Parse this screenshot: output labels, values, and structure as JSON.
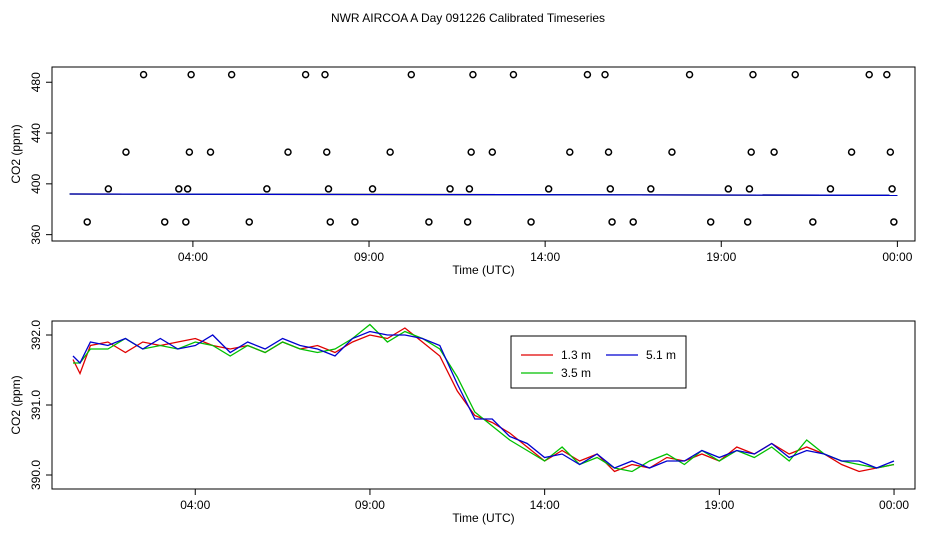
{
  "title": "NWR AIRCOA A  Day 091226  Calibrated Timeseries",
  "colors": {
    "red": "#e00000",
    "green": "#00c000",
    "blue": "#0000d0"
  },
  "chart_data": [
    {
      "type": "scatter",
      "xlabel": "Time (UTC)",
      "ylabel": "CO2 (ppm)",
      "xticks": [
        {
          "label": "04:00",
          "hour": 4
        },
        {
          "label": "09:00",
          "hour": 9
        },
        {
          "label": "14:00",
          "hour": 14
        },
        {
          "label": "19:00",
          "hour": 19
        },
        {
          "label": "00:00",
          "hour": 24
        }
      ],
      "yticks": [
        360,
        400,
        440,
        480
      ],
      "xlim": [
        0,
        24.5
      ],
      "ylim": [
        355,
        492
      ],
      "points": [
        {
          "x": 1.0,
          "y": 370
        },
        {
          "x": 1.6,
          "y": 396
        },
        {
          "x": 2.1,
          "y": 425
        },
        {
          "x": 2.6,
          "y": 486
        },
        {
          "x": 3.2,
          "y": 370
        },
        {
          "x": 3.6,
          "y": 396
        },
        {
          "x": 3.8,
          "y": 370
        },
        {
          "x": 3.85,
          "y": 396
        },
        {
          "x": 3.9,
          "y": 425
        },
        {
          "x": 3.95,
          "y": 486
        },
        {
          "x": 4.5,
          "y": 425
        },
        {
          "x": 5.1,
          "y": 486
        },
        {
          "x": 5.6,
          "y": 370
        },
        {
          "x": 6.1,
          "y": 396
        },
        {
          "x": 6.7,
          "y": 425
        },
        {
          "x": 7.2,
          "y": 486
        },
        {
          "x": 7.75,
          "y": 486
        },
        {
          "x": 7.8,
          "y": 425
        },
        {
          "x": 7.85,
          "y": 396
        },
        {
          "x": 7.9,
          "y": 370
        },
        {
          "x": 8.6,
          "y": 370
        },
        {
          "x": 9.1,
          "y": 396
        },
        {
          "x": 9.6,
          "y": 425
        },
        {
          "x": 10.2,
          "y": 486
        },
        {
          "x": 10.7,
          "y": 370
        },
        {
          "x": 11.3,
          "y": 396
        },
        {
          "x": 11.8,
          "y": 370
        },
        {
          "x": 11.85,
          "y": 396
        },
        {
          "x": 11.9,
          "y": 425
        },
        {
          "x": 11.95,
          "y": 486
        },
        {
          "x": 12.5,
          "y": 425
        },
        {
          "x": 13.1,
          "y": 486
        },
        {
          "x": 13.6,
          "y": 370
        },
        {
          "x": 14.1,
          "y": 396
        },
        {
          "x": 14.7,
          "y": 425
        },
        {
          "x": 15.2,
          "y": 486
        },
        {
          "x": 15.7,
          "y": 486
        },
        {
          "x": 15.8,
          "y": 425
        },
        {
          "x": 15.85,
          "y": 396
        },
        {
          "x": 15.9,
          "y": 370
        },
        {
          "x": 16.5,
          "y": 370
        },
        {
          "x": 17.0,
          "y": 396
        },
        {
          "x": 17.6,
          "y": 425
        },
        {
          "x": 18.1,
          "y": 486
        },
        {
          "x": 18.7,
          "y": 370
        },
        {
          "x": 19.2,
          "y": 396
        },
        {
          "x": 19.75,
          "y": 370
        },
        {
          "x": 19.8,
          "y": 396
        },
        {
          "x": 19.85,
          "y": 425
        },
        {
          "x": 19.9,
          "y": 486
        },
        {
          "x": 20.5,
          "y": 425
        },
        {
          "x": 21.1,
          "y": 486
        },
        {
          "x": 21.6,
          "y": 370
        },
        {
          "x": 22.1,
          "y": 396
        },
        {
          "x": 22.7,
          "y": 425
        },
        {
          "x": 23.2,
          "y": 486
        },
        {
          "x": 23.7,
          "y": 486
        },
        {
          "x": 23.8,
          "y": 425
        },
        {
          "x": 23.85,
          "y": 396
        },
        {
          "x": 23.9,
          "y": 370
        }
      ],
      "series": [
        {
          "color": "#e00000",
          "x": [
            0.5,
            24
          ],
          "y": [
            392.0,
            391.0
          ]
        },
        {
          "color": "#00c000",
          "x": [
            0.5,
            24
          ],
          "y": [
            392.0,
            391.0
          ]
        },
        {
          "color": "#0000d0",
          "x": [
            0.5,
            24
          ],
          "y": [
            392.0,
            391.0
          ]
        }
      ]
    },
    {
      "type": "line",
      "xlabel": "Time (UTC)",
      "ylabel": "CO2 (ppm)",
      "xticks": [
        {
          "label": "04:00",
          "hour": 4
        },
        {
          "label": "09:00",
          "hour": 9
        },
        {
          "label": "14:00",
          "hour": 14
        },
        {
          "label": "19:00",
          "hour": 19
        },
        {
          "label": "00:00",
          "hour": 24
        }
      ],
      "yticks": [
        {
          "label": "390.0",
          "value": 390.0
        },
        {
          "label": "391.0",
          "value": 391.0
        },
        {
          "label": "392.0",
          "value": 392.0
        }
      ],
      "xlim": [
        -0.1,
        24.6
      ],
      "ylim": [
        389.8,
        392.2
      ],
      "legend": "top-right",
      "series": [
        {
          "name": "1.3 m",
          "color": "#e00000",
          "x": [
            0.5,
            0.7,
            1.0,
            1.5,
            2.0,
            2.5,
            3.0,
            3.5,
            4.0,
            4.5,
            5.0,
            5.5,
            6.0,
            6.5,
            7.0,
            7.5,
            8.0,
            8.5,
            9.0,
            9.5,
            10.0,
            10.5,
            11.0,
            11.5,
            12.0,
            12.5,
            13.0,
            13.5,
            14.0,
            14.5,
            15.0,
            15.5,
            16.0,
            16.5,
            17.0,
            17.5,
            18.0,
            18.5,
            19.0,
            19.5,
            20.0,
            20.5,
            21.0,
            21.5,
            22.0,
            22.5,
            23.0,
            23.5,
            24.0
          ],
          "y": [
            391.65,
            391.45,
            391.85,
            391.9,
            391.75,
            391.9,
            391.85,
            391.9,
            391.95,
            391.85,
            391.8,
            391.85,
            391.75,
            391.9,
            391.8,
            391.85,
            391.75,
            391.9,
            392.0,
            391.95,
            392.1,
            391.9,
            391.7,
            391.2,
            390.85,
            390.75,
            390.6,
            390.4,
            390.2,
            390.35,
            390.2,
            390.3,
            390.05,
            390.15,
            390.1,
            390.25,
            390.2,
            390.3,
            390.2,
            390.4,
            390.3,
            390.45,
            390.3,
            390.4,
            390.3,
            390.15,
            390.05,
            390.1,
            390.15
          ]
        },
        {
          "name": "3.5 m",
          "color": "#00c000",
          "x": [
            0.5,
            0.7,
            1.0,
            1.5,
            2.0,
            2.5,
            3.0,
            3.5,
            4.0,
            4.5,
            5.0,
            5.5,
            6.0,
            6.5,
            7.0,
            7.5,
            8.0,
            8.5,
            9.0,
            9.5,
            10.0,
            10.5,
            11.0,
            11.5,
            12.0,
            12.5,
            13.0,
            13.5,
            14.0,
            14.5,
            15.0,
            15.5,
            16.0,
            16.5,
            17.0,
            17.5,
            18.0,
            18.5,
            19.0,
            19.5,
            20.0,
            20.5,
            21.0,
            21.5,
            22.0,
            22.5,
            23.0,
            23.5,
            24.0
          ],
          "y": [
            391.6,
            391.6,
            391.8,
            391.8,
            391.95,
            391.8,
            391.85,
            391.8,
            391.9,
            391.85,
            391.7,
            391.85,
            391.75,
            391.9,
            391.8,
            391.75,
            391.8,
            391.95,
            392.15,
            391.9,
            392.05,
            391.95,
            391.8,
            391.4,
            390.9,
            390.7,
            390.5,
            390.35,
            390.2,
            390.4,
            390.15,
            390.25,
            390.1,
            390.05,
            390.2,
            390.3,
            390.15,
            390.35,
            390.2,
            390.35,
            390.25,
            390.4,
            390.2,
            390.5,
            390.3,
            390.2,
            390.15,
            390.1,
            390.15
          ]
        },
        {
          "name": "5.1 m",
          "color": "#0000d0",
          "x": [
            0.5,
            0.7,
            1.0,
            1.5,
            2.0,
            2.5,
            3.0,
            3.5,
            4.0,
            4.5,
            5.0,
            5.5,
            6.0,
            6.5,
            7.0,
            7.5,
            8.0,
            8.5,
            9.0,
            9.5,
            10.0,
            10.5,
            11.0,
            11.5,
            12.0,
            12.5,
            13.0,
            13.5,
            14.0,
            14.5,
            15.0,
            15.5,
            16.0,
            16.5,
            17.0,
            17.5,
            18.0,
            18.5,
            19.0,
            19.5,
            20.0,
            20.5,
            21.0,
            21.5,
            22.0,
            22.5,
            23.0,
            23.5,
            24.0
          ],
          "y": [
            391.7,
            391.6,
            391.9,
            391.85,
            391.95,
            391.8,
            391.95,
            391.8,
            391.85,
            392.0,
            391.75,
            391.9,
            391.8,
            391.95,
            391.85,
            391.8,
            391.7,
            391.95,
            392.05,
            392.0,
            392.0,
            391.95,
            391.85,
            391.3,
            390.8,
            390.8,
            390.55,
            390.45,
            390.25,
            390.3,
            390.15,
            390.3,
            390.1,
            390.2,
            390.1,
            390.2,
            390.2,
            390.35,
            390.25,
            390.35,
            390.3,
            390.45,
            390.25,
            390.35,
            390.3,
            390.2,
            390.2,
            390.1,
            390.2
          ]
        }
      ]
    }
  ]
}
